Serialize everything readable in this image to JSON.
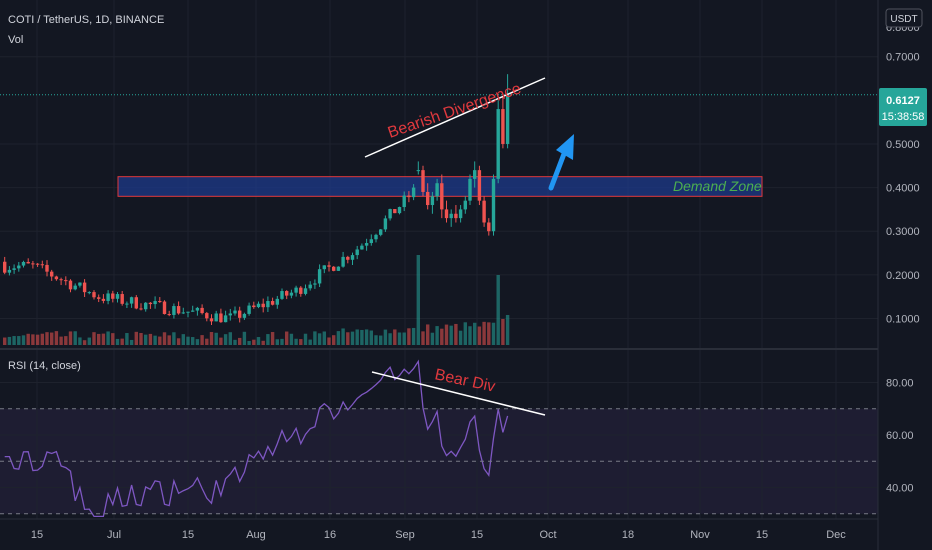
{
  "chart_data": {
    "type": "candlestick",
    "legend": {
      "symbol": "COTI / TetherUS, 1D, BINANCE",
      "volume": "Vol",
      "rsi": "RSI (14, close)"
    },
    "price_axis": {
      "currency": "USDT",
      "ticks": [
        "0.1000",
        "0.2000",
        "0.3000",
        "0.4000",
        "0.5000",
        "0.7000"
      ],
      "partial_tick": "0.8000",
      "ylim": [
        0.03,
        0.83
      ]
    },
    "rsi_axis": {
      "ticks": [
        "40.00",
        "60.00",
        "80.00"
      ],
      "ylim": [
        28,
        92
      ],
      "upper_band": 70,
      "mid_band": 50,
      "lower_band": 30
    },
    "time_axis": {
      "labels": [
        "15",
        "Jul",
        "15",
        "Aug",
        "16",
        "Sep",
        "15",
        "Oct",
        "18",
        "Nov",
        "15",
        "Dec"
      ]
    },
    "last_price": {
      "value": "0.6127",
      "countdown": "15:38:58",
      "price": 0.6127
    },
    "annotations": {
      "price_divergence": "Bearish Divergence",
      "rsi_divergence": "Bear Div",
      "demand_zone": "Demand Zone",
      "zone_low": 0.38,
      "zone_high": 0.425
    },
    "colors": {
      "up": "#26a69a",
      "down": "#ef5350",
      "rsi_line": "#7e57c2",
      "zone_fill": "#1e3a8a",
      "zone_border": "#e0393e",
      "arrow": "#2196f3",
      "background": "#131722"
    },
    "candles_ohlc_recent": [
      [
        0.44,
        0.46,
        0.43,
        0.44
      ],
      [
        0.44,
        0.45,
        0.38,
        0.39
      ],
      [
        0.39,
        0.41,
        0.35,
        0.36
      ],
      [
        0.36,
        0.39,
        0.34,
        0.38
      ],
      [
        0.38,
        0.42,
        0.37,
        0.41
      ],
      [
        0.41,
        0.43,
        0.33,
        0.35
      ],
      [
        0.35,
        0.37,
        0.32,
        0.33
      ],
      [
        0.33,
        0.35,
        0.31,
        0.34
      ],
      [
        0.34,
        0.36,
        0.32,
        0.33
      ],
      [
        0.33,
        0.36,
        0.32,
        0.35
      ],
      [
        0.35,
        0.38,
        0.34,
        0.37
      ],
      [
        0.37,
        0.43,
        0.36,
        0.42
      ],
      [
        0.42,
        0.46,
        0.4,
        0.44
      ],
      [
        0.44,
        0.45,
        0.36,
        0.37
      ],
      [
        0.37,
        0.38,
        0.31,
        0.32
      ],
      [
        0.32,
        0.33,
        0.29,
        0.3
      ],
      [
        0.3,
        0.43,
        0.29,
        0.42
      ],
      [
        0.42,
        0.6,
        0.41,
        0.58
      ],
      [
        0.58,
        0.61,
        0.49,
        0.5
      ],
      [
        0.5,
        0.66,
        0.49,
        0.6127
      ]
    ]
  }
}
